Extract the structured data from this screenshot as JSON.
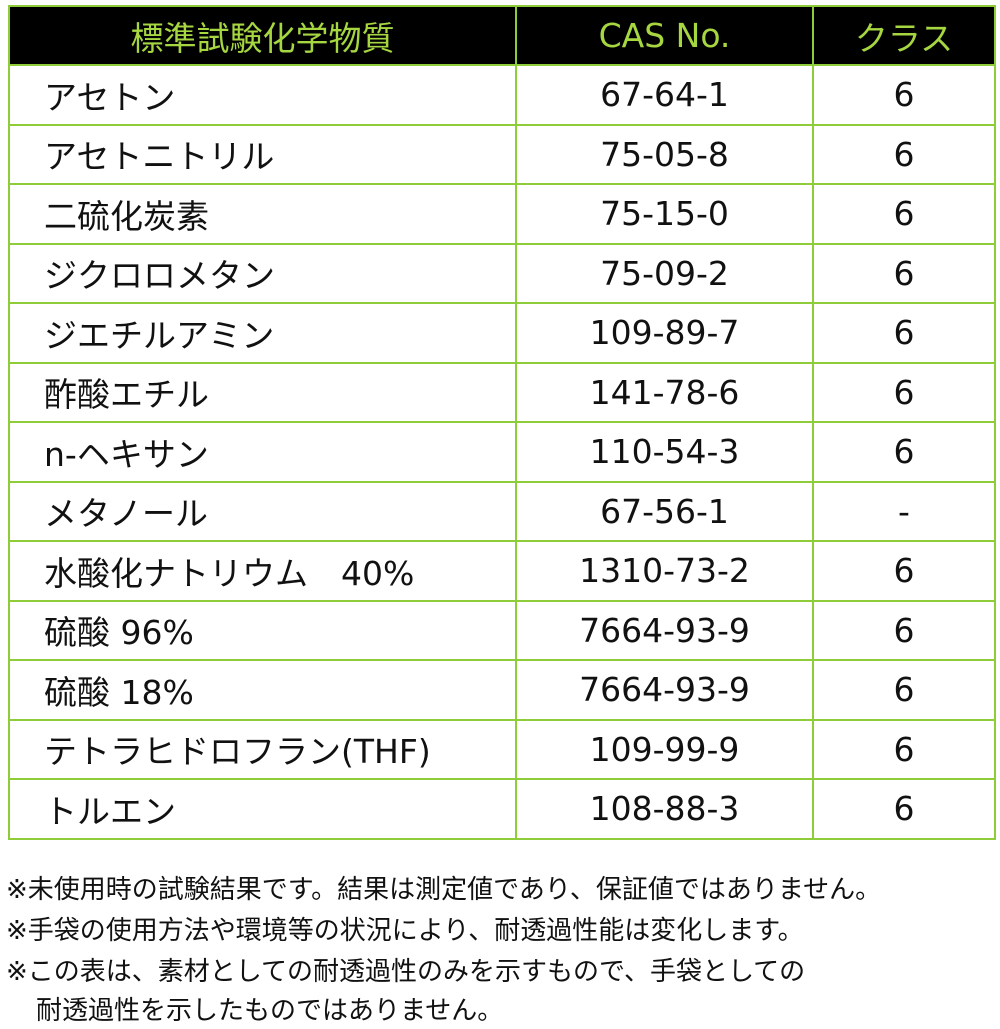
{
  "table": {
    "header": [
      "標準試験化学物質",
      "CAS No.",
      "クラス"
    ],
    "rows": [
      [
        "アセトン",
        "67-64-1",
        "6"
      ],
      [
        "アセトニトリル",
        "75-05-8",
        "6"
      ],
      [
        "二硫化炭素",
        "75-15-0",
        "6"
      ],
      [
        "ジクロロメタン",
        "75-09-2",
        "6"
      ],
      [
        "ジエチルアミン",
        "109-89-7",
        "6"
      ],
      [
        "酢酸エチル",
        "141-78-6",
        "6"
      ],
      [
        "n-ヘキサン",
        "110-54-3",
        "6"
      ],
      [
        "メタノール",
        "67-56-1",
        "-"
      ],
      [
        "水酸化ナトリウム　40%",
        "1310-73-2",
        "6"
      ],
      [
        "硫酸 96%",
        "7664-93-9",
        "6"
      ],
      [
        "硫酸 18%",
        "7664-93-9",
        "6"
      ],
      [
        "テトラヒドロフラン(THF)",
        "109-99-9",
        "6"
      ],
      [
        "トルエン",
        "108-88-3",
        "6"
      ]
    ]
  },
  "notes": [
    "※未使用時の試験結果です。結果は測定値であり、保証値ではありません。",
    "※手袋の使用方法や環境等の状況により、耐透過性能は変化します。",
    "※この表は、素材としての耐透過性のみを示すもので、手袋としての",
    "耐透過性を示したものではありません。"
  ]
}
